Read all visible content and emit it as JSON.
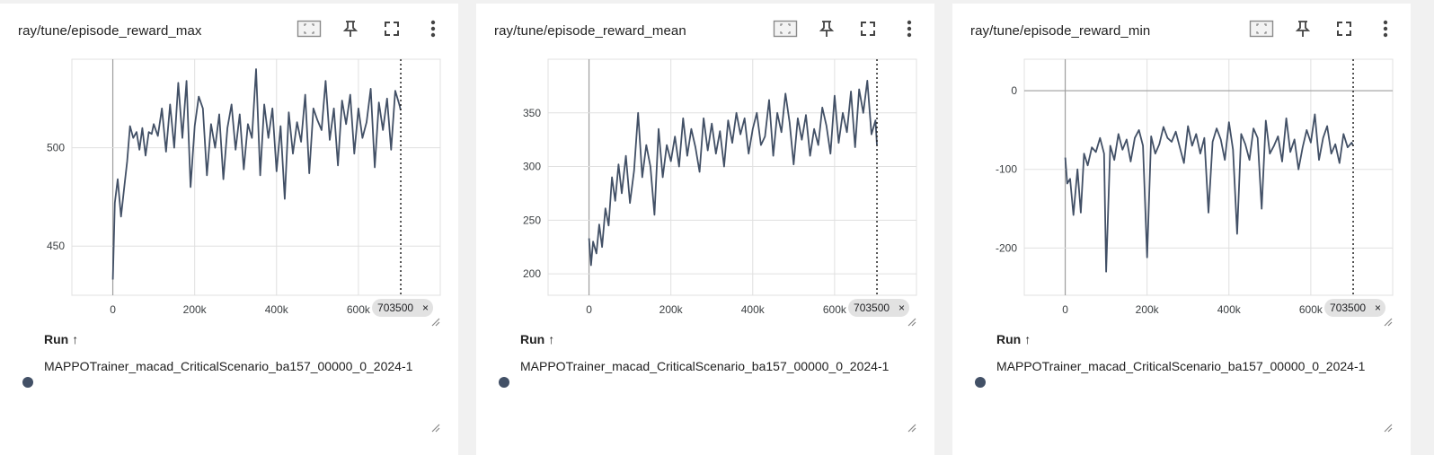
{
  "cards": [
    {
      "title": "ray/tune/episode_reward_max",
      "run_header": "Run",
      "run_sort_icon": "arrow-up-icon",
      "run_name": "MAPPOTrainer_macad_CriticalScenario_ba157_00000_0_2024-1",
      "cursor_value": "703500",
      "cursor_close": "×"
    },
    {
      "title": "ray/tune/episode_reward_mean",
      "run_header": "Run",
      "run_sort_icon": "arrow-up-icon",
      "run_name": "MAPPOTrainer_macad_CriticalScenario_ba157_00000_0_2024-1",
      "cursor_value": "703500",
      "cursor_close": "×"
    },
    {
      "title": "ray/tune/episode_reward_min",
      "run_header": "Run",
      "run_sort_icon": "arrow-up-icon",
      "run_name": "MAPPOTrainer_macad_CriticalScenario_ba157_00000_0_2024-1",
      "cursor_value": "703500",
      "cursor_close": "×"
    }
  ],
  "toolbar_icons": [
    "fit-domain-icon",
    "pin-icon",
    "fullscreen-icon",
    "more-vert-icon"
  ],
  "colors": {
    "series": "#425066",
    "grid": "#e0e0e0",
    "axis": "#9e9e9e"
  },
  "chart_data": [
    {
      "type": "line",
      "title": "ray/tune/episode_reward_max",
      "xlabel": "",
      "ylabel": "",
      "xlim": [
        -100000,
        800000
      ],
      "ylim": [
        425,
        545
      ],
      "x_ticks": [
        0,
        200000,
        400000,
        600000
      ],
      "x_tick_labels": [
        "0",
        "200k",
        "400k",
        "600k"
      ],
      "y_ticks": [
        450,
        500
      ],
      "y_tick_labels": [
        "450",
        "500"
      ],
      "grid": true,
      "cursor_x": 703500,
      "series": [
        {
          "x": [
            0,
            5000,
            12000,
            20000,
            28000,
            35000,
            42000,
            50000,
            58000,
            65000,
            72000,
            80000,
            88000,
            95000,
            100000,
            110000,
            120000,
            130000,
            140000,
            150000,
            160000,
            170000,
            180000,
            190000,
            200000,
            210000,
            220000,
            230000,
            240000,
            250000,
            260000,
            270000,
            280000,
            290000,
            300000,
            310000,
            320000,
            330000,
            340000,
            350000,
            360000,
            370000,
            380000,
            390000,
            400000,
            410000,
            420000,
            430000,
            440000,
            450000,
            460000,
            470000,
            480000,
            490000,
            500000,
            510000,
            520000,
            530000,
            540000,
            550000,
            560000,
            570000,
            580000,
            590000,
            600000,
            610000,
            620000,
            630000,
            640000,
            650000,
            660000,
            670000,
            680000,
            690000,
            700000,
            703500
          ],
          "y": [
            433,
            472,
            484,
            465,
            480,
            493,
            511,
            505,
            508,
            499,
            510,
            496,
            508,
            507,
            512,
            506,
            520,
            498,
            522,
            500,
            533,
            505,
            534,
            480,
            511,
            526,
            520,
            486,
            512,
            500,
            517,
            484,
            510,
            522,
            499,
            517,
            489,
            512,
            505,
            540,
            486,
            522,
            505,
            520,
            488,
            511,
            474,
            518,
            497,
            513,
            503,
            527,
            487,
            520,
            514,
            509,
            534,
            504,
            520,
            491,
            524,
            512,
            527,
            497,
            520,
            505,
            513,
            530,
            490,
            523,
            509,
            525,
            499,
            529,
            522,
            519
          ]
        }
      ]
    },
    {
      "type": "line",
      "title": "ray/tune/episode_reward_mean",
      "xlabel": "",
      "ylabel": "",
      "xlim": [
        -100000,
        800000
      ],
      "ylim": [
        180,
        400
      ],
      "x_ticks": [
        0,
        200000,
        400000,
        600000
      ],
      "x_tick_labels": [
        "0",
        "200k",
        "400k",
        "600k"
      ],
      "y_ticks": [
        200,
        250,
        300,
        350
      ],
      "y_tick_labels": [
        "200",
        "250",
        "300",
        "350"
      ],
      "grid": true,
      "cursor_x": 703500,
      "series": [
        {
          "x": [
            0,
            5000,
            10000,
            18000,
            25000,
            32000,
            40000,
            48000,
            56000,
            64000,
            72000,
            80000,
            90000,
            100000,
            110000,
            120000,
            130000,
            140000,
            150000,
            160000,
            170000,
            180000,
            190000,
            200000,
            210000,
            220000,
            230000,
            240000,
            250000,
            260000,
            270000,
            280000,
            290000,
            300000,
            310000,
            320000,
            330000,
            340000,
            350000,
            360000,
            370000,
            380000,
            390000,
            400000,
            410000,
            420000,
            430000,
            440000,
            450000,
            460000,
            470000,
            480000,
            490000,
            500000,
            510000,
            520000,
            530000,
            540000,
            550000,
            560000,
            570000,
            580000,
            590000,
            600000,
            610000,
            620000,
            630000,
            640000,
            650000,
            660000,
            670000,
            680000,
            690000,
            700000,
            703500
          ],
          "y": [
            233,
            208,
            230,
            219,
            246,
            225,
            261,
            245,
            290,
            268,
            302,
            275,
            310,
            266,
            296,
            350,
            290,
            320,
            300,
            255,
            335,
            290,
            320,
            305,
            328,
            300,
            345,
            310,
            335,
            318,
            295,
            345,
            315,
            340,
            312,
            333,
            300,
            343,
            322,
            350,
            330,
            345,
            312,
            335,
            350,
            320,
            328,
            362,
            310,
            350,
            332,
            368,
            341,
            302,
            345,
            325,
            348,
            310,
            335,
            320,
            355,
            338,
            312,
            366,
            322,
            350,
            332,
            370,
            318,
            372,
            350,
            380,
            330,
            343,
            320
          ]
        }
      ]
    },
    {
      "type": "line",
      "title": "ray/tune/episode_reward_min",
      "xlabel": "",
      "ylabel": "",
      "xlim": [
        -100000,
        800000
      ],
      "ylim": [
        -260,
        40
      ],
      "x_ticks": [
        0,
        200000,
        400000,
        600000
      ],
      "x_tick_labels": [
        "0",
        "200k",
        "400k",
        "600k"
      ],
      "y_ticks": [
        -200,
        -100,
        0
      ],
      "y_tick_labels": [
        "-200",
        "-100",
        "0"
      ],
      "grid": true,
      "cursor_x": 703500,
      "series": [
        {
          "x": [
            0,
            5000,
            12000,
            20000,
            30000,
            38000,
            46000,
            55000,
            65000,
            75000,
            85000,
            95000,
            100000,
            110000,
            120000,
            130000,
            140000,
            150000,
            160000,
            170000,
            180000,
            190000,
            200000,
            210000,
            220000,
            230000,
            240000,
            250000,
            260000,
            270000,
            280000,
            290000,
            300000,
            310000,
            320000,
            330000,
            340000,
            350000,
            360000,
            370000,
            380000,
            390000,
            400000,
            410000,
            420000,
            430000,
            440000,
            450000,
            460000,
            470000,
            480000,
            490000,
            500000,
            510000,
            520000,
            530000,
            540000,
            550000,
            560000,
            570000,
            580000,
            590000,
            600000,
            610000,
            620000,
            630000,
            640000,
            650000,
            660000,
            670000,
            680000,
            690000,
            700000,
            703500
          ],
          "y": [
            -85,
            -118,
            -112,
            -158,
            -100,
            -155,
            -80,
            -95,
            -72,
            -78,
            -60,
            -80,
            -230,
            -70,
            -88,
            -55,
            -75,
            -62,
            -90,
            -60,
            -50,
            -70,
            -212,
            -58,
            -80,
            -68,
            -46,
            -60,
            -65,
            -52,
            -72,
            -92,
            -45,
            -70,
            -55,
            -80,
            -60,
            -155,
            -65,
            -48,
            -62,
            -88,
            -40,
            -75,
            -182,
            -55,
            -68,
            -88,
            -48,
            -60,
            -150,
            -38,
            -80,
            -70,
            -58,
            -90,
            -35,
            -78,
            -62,
            -100,
            -72,
            -50,
            -66,
            -30,
            -88,
            -60,
            -45,
            -80,
            -68,
            -92,
            -55,
            -72,
            -66,
            -70
          ]
        }
      ]
    }
  ]
}
